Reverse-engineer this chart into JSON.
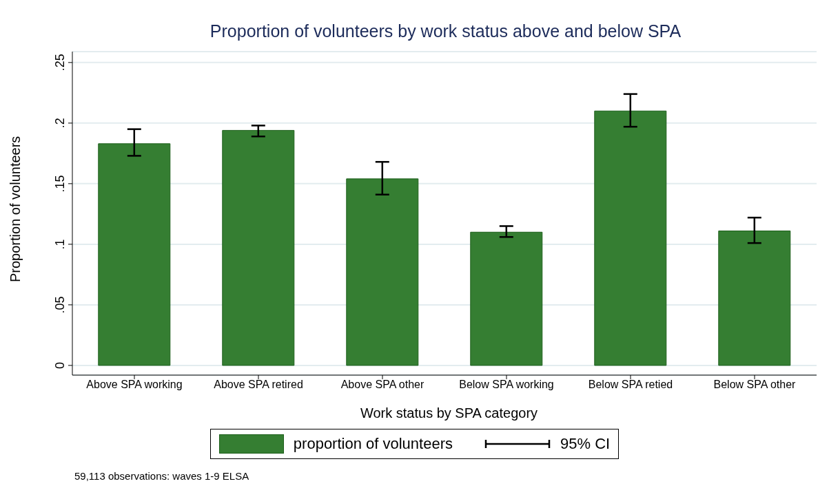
{
  "chart_data": {
    "type": "bar",
    "title": "Proportion of volunteers by work status above and below SPA",
    "xlabel": "Work status by SPA category",
    "ylabel": "Proportion of volunteers",
    "categories": [
      "Above SPA working",
      "Above SPA retired",
      "Above SPA other",
      "Below SPA working",
      "Below SPA retied",
      "Below SPA other"
    ],
    "series": [
      {
        "name": "proportion of volunteers",
        "color": "#357e32",
        "values": [
          0.183,
          0.194,
          0.154,
          0.11,
          0.21,
          0.111
        ],
        "errors": [
          [
            0.173,
            0.195
          ],
          [
            0.189,
            0.198
          ],
          [
            0.141,
            0.168
          ],
          [
            0.106,
            0.115
          ],
          [
            0.197,
            0.224
          ],
          [
            0.101,
            0.122
          ]
        ]
      }
    ],
    "ylim": [
      -0.008,
      0.259
    ],
    "yticks": [
      0,
      {
        "value": 0.05,
        "label": ".05"
      },
      {
        "value": 0.1,
        "label": ".1"
      },
      {
        "value": 0.15,
        "label": ".15"
      },
      {
        "value": 0.2,
        "label": ".2"
      },
      {
        "value": 0.25,
        "label": ".25"
      }
    ],
    "grid": "y",
    "legend": "bottom",
    "annotations": [
      "95% CI",
      "59,113 observations: waves 1-9 ELSA"
    ]
  }
}
